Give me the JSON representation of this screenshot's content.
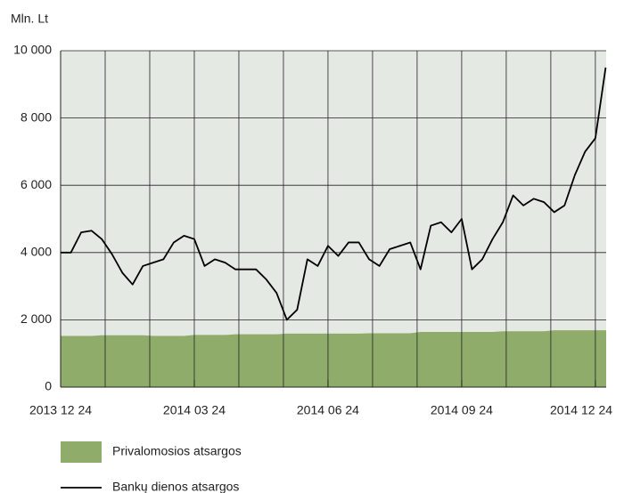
{
  "chart_data": {
    "type": "area_line",
    "ylabel": "Mln. Lt",
    "categories": [
      "2013 12 24",
      null,
      null,
      null,
      null,
      null,
      null,
      null,
      null,
      null,
      null,
      null,
      null,
      "2014 03 24",
      null,
      null,
      null,
      null,
      null,
      null,
      null,
      null,
      null,
      null,
      null,
      null,
      "2014 06 24",
      null,
      null,
      null,
      null,
      null,
      null,
      null,
      null,
      null,
      null,
      null,
      null,
      "2014 09 24",
      null,
      null,
      null,
      null,
      null,
      null,
      null,
      null,
      null,
      null,
      null,
      null,
      "2014 12 24",
      null
    ],
    "series": [
      {
        "name": "Privalomosios atsargos",
        "kind": "area",
        "color": "#8fac6a",
        "values": [
          1520,
          1520,
          1520,
          1520,
          1540,
          1540,
          1540,
          1540,
          1540,
          1520,
          1520,
          1520,
          1520,
          1550,
          1550,
          1550,
          1550,
          1570,
          1570,
          1570,
          1570,
          1570,
          1590,
          1590,
          1590,
          1590,
          1590,
          1590,
          1590,
          1590,
          1600,
          1600,
          1600,
          1600,
          1600,
          1640,
          1640,
          1640,
          1640,
          1640,
          1640,
          1640,
          1640,
          1660,
          1660,
          1660,
          1660,
          1660,
          1690,
          1690,
          1690,
          1690,
          1690,
          1690
        ]
      },
      {
        "name": "Bankų dienos atsargos",
        "kind": "line",
        "color": "#000000",
        "values": [
          4000,
          4000,
          4600,
          4650,
          4400,
          3950,
          3400,
          3050,
          3600,
          3700,
          3800,
          4300,
          4500,
          4400,
          3600,
          3800,
          3700,
          3500,
          3500,
          3500,
          3200,
          2800,
          2000,
          2300,
          3800,
          3600,
          4200,
          3900,
          4300,
          4300,
          3800,
          3600,
          4100,
          4200,
          4300,
          3500,
          4800,
          4900,
          4600,
          5000,
          3500,
          3800,
          4400,
          4900,
          5700,
          5400,
          5600,
          5500,
          5200,
          5400,
          6300,
          7000,
          7400,
          9500
        ]
      }
    ],
    "ylim": [
      0,
      10000
    ],
    "yticks": [
      0,
      {
        "value": 2000,
        "label": "2 000"
      },
      {
        "value": 4000,
        "label": "4 000"
      },
      {
        "value": 6000,
        "label": "6 000"
      },
      {
        "value": 8000,
        "label": "8 000"
      },
      {
        "value": 10000,
        "label": "10 000"
      }
    ],
    "grid": true,
    "background": "#e4e9e4"
  }
}
